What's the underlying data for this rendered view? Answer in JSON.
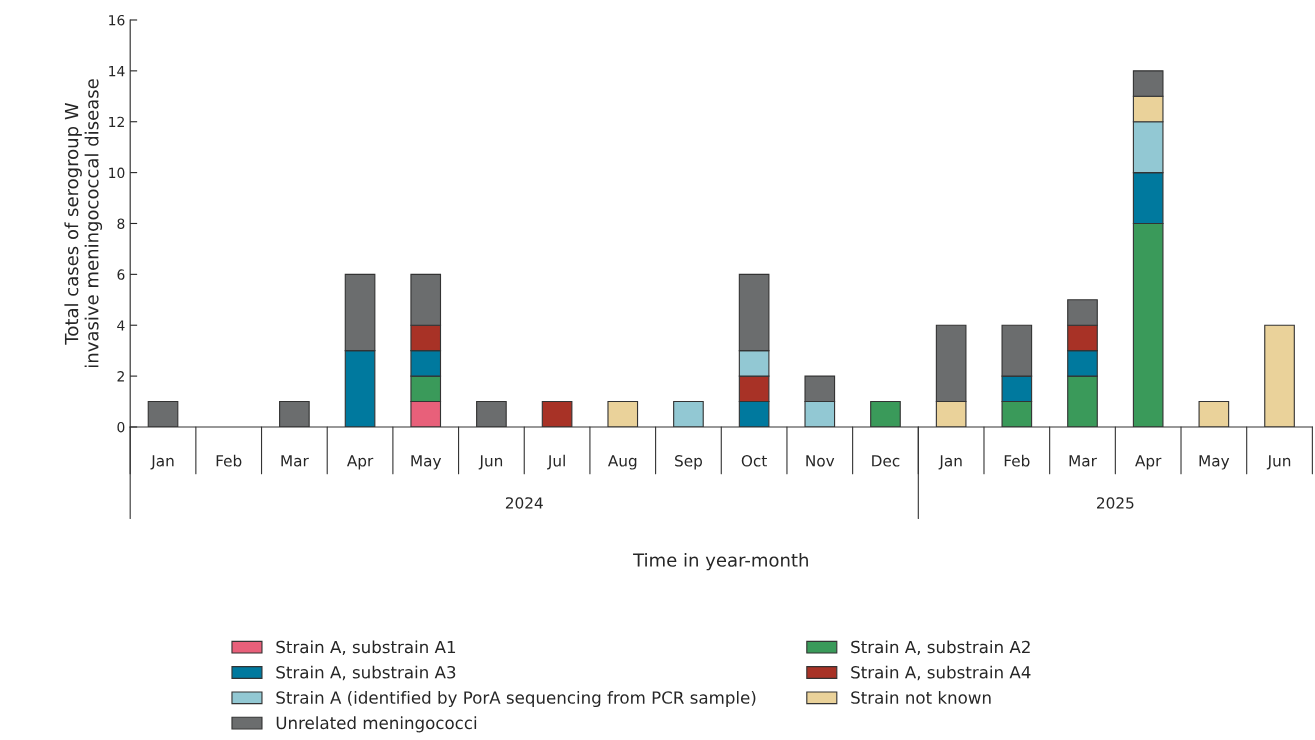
{
  "chart_data": {
    "type": "bar",
    "stacked": true,
    "ylabel": "Total cases of serogroup W\ninvasive meningococcal disease",
    "xlabel": "Time in year-month",
    "categories": [
      "Jan",
      "Feb",
      "Mar",
      "Apr",
      "May",
      "Jun",
      "Jul",
      "Aug",
      "Sep",
      "Oct",
      "Nov",
      "Dec",
      "Jan",
      "Feb",
      "Mar",
      "Apr",
      "May",
      "Jun"
    ],
    "annotations": [
      "2024",
      "2025"
    ],
    "ylim": [
      0,
      16
    ],
    "yticks": [
      0,
      2,
      4,
      6,
      8,
      10,
      12,
      14,
      16
    ],
    "grid": false,
    "legend": "bottom",
    "series": [
      {
        "name": "Strain A, substrain A1",
        "color": "#e8607a",
        "values": [
          null,
          null,
          null,
          null,
          1,
          null,
          null,
          null,
          null,
          null,
          null,
          null,
          null,
          null,
          null,
          null,
          null,
          null
        ]
      },
      {
        "name": "Strain A, substrain A2",
        "color": "#3a9a5a",
        "values": [
          null,
          null,
          null,
          null,
          1,
          null,
          null,
          null,
          null,
          null,
          null,
          1,
          null,
          1,
          2,
          8,
          null,
          null
        ]
      },
      {
        "name": "Strain A, substrain A3",
        "color": "#00799e",
        "values": [
          null,
          null,
          null,
          3,
          1,
          null,
          null,
          null,
          null,
          1,
          null,
          null,
          null,
          1,
          1,
          2,
          null,
          null
        ]
      },
      {
        "name": "Strain A, substrain A4",
        "color": "#a83226",
        "values": [
          null,
          null,
          null,
          null,
          1,
          null,
          1,
          null,
          null,
          1,
          null,
          null,
          null,
          null,
          1,
          null,
          null,
          null
        ]
      },
      {
        "name": "Strain A (identified by PorA sequencing from PCR sample)",
        "color": "#92c8d3",
        "values": [
          null,
          null,
          null,
          null,
          null,
          null,
          null,
          null,
          1,
          1,
          1,
          null,
          null,
          null,
          null,
          2,
          null,
          null
        ]
      },
      {
        "name": "Strain not known",
        "color": "#ead29a",
        "values": [
          null,
          null,
          null,
          null,
          null,
          null,
          null,
          1,
          null,
          null,
          null,
          null,
          1,
          null,
          null,
          1,
          1,
          4
        ]
      },
      {
        "name": "Unrelated meningococci",
        "color": "#6b6d6e",
        "values": [
          1,
          null,
          1,
          3,
          2,
          1,
          null,
          null,
          null,
          3,
          1,
          null,
          3,
          2,
          1,
          1,
          null,
          null
        ]
      }
    ]
  }
}
